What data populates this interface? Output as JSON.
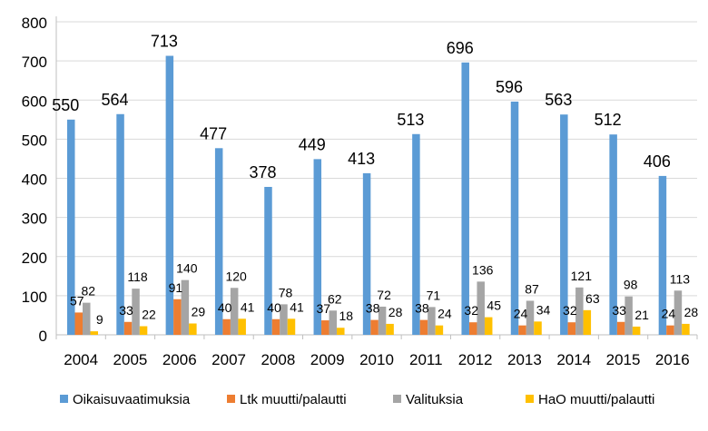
{
  "chart_data": {
    "type": "bar",
    "categories": [
      "2004",
      "2005",
      "2006",
      "2007",
      "2008",
      "2009",
      "2010",
      "2011",
      "2012",
      "2013",
      "2014",
      "2015",
      "2016"
    ],
    "series": [
      {
        "name": "Oikaisuvaatimuksia",
        "color": "#5B9BD5",
        "values": [
          550,
          564,
          713,
          477,
          378,
          449,
          413,
          513,
          696,
          596,
          563,
          512,
          406
        ]
      },
      {
        "name": "Ltk muutti/palautti",
        "color": "#ED7D31",
        "values": [
          57,
          33,
          91,
          40,
          40,
          37,
          38,
          38,
          32,
          24,
          32,
          33,
          24
        ]
      },
      {
        "name": "Valituksia",
        "color": "#A5A5A5",
        "values": [
          82,
          118,
          140,
          120,
          78,
          62,
          72,
          71,
          136,
          87,
          121,
          98,
          113
        ]
      },
      {
        "name": "HaO muutti/palautti",
        "color": "#FFC000",
        "values": [
          9,
          22,
          29,
          41,
          41,
          18,
          28,
          24,
          45,
          34,
          63,
          21,
          28
        ]
      }
    ],
    "ylim": [
      0,
      800
    ],
    "yticks": [
      0,
      100,
      200,
      300,
      400,
      500,
      600,
      700,
      800
    ],
    "grid": true,
    "legend_position": "bottom",
    "data_labels": true
  }
}
